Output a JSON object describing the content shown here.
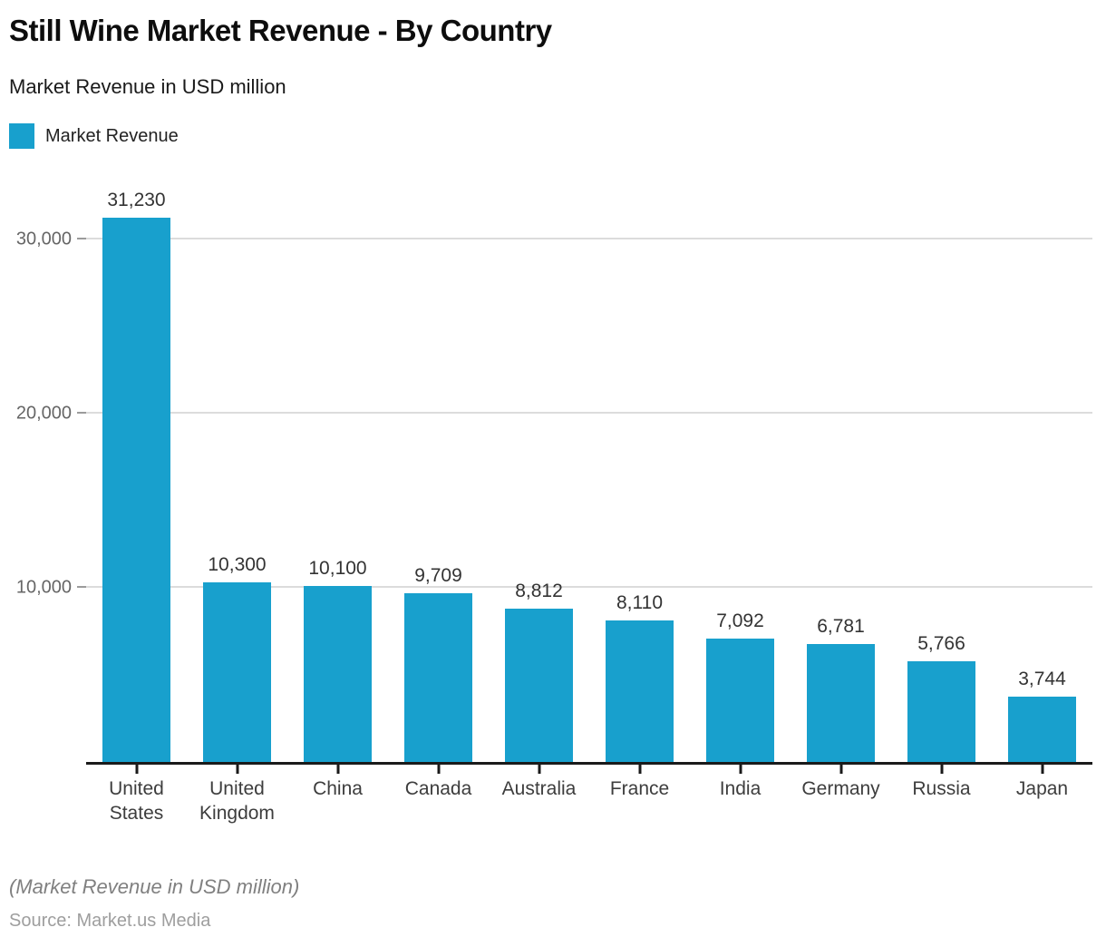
{
  "header": {
    "title": "Still Wine Market Revenue - By Country",
    "subtitle": "Market Revenue in USD million",
    "legend": {
      "label": "Market Revenue",
      "color": "#18A0CD"
    }
  },
  "chart_data": {
    "type": "bar",
    "title": "Still Wine Market Revenue - By Country",
    "series_name": "Market Revenue",
    "categories": [
      "United\nStates",
      "United\nKingdom",
      "China",
      "Canada",
      "Australia",
      "France",
      "India",
      "Germany",
      "Russia",
      "Japan"
    ],
    "values": [
      31230,
      10300,
      10100,
      9709,
      8812,
      8110,
      7092,
      6781,
      5766,
      3744
    ],
    "value_labels": [
      "31,230",
      "10,300",
      "10,100",
      "9,709",
      "8,812",
      "8,110",
      "7,092",
      "6,781",
      "5,766",
      "3,744"
    ],
    "xlabel": "",
    "ylabel": "Market Revenue in USD million",
    "ylim": [
      0,
      33850
    ],
    "yticks": [
      10000,
      20000,
      30000
    ],
    "ytick_labels": [
      "10,000",
      "20,000",
      "30,000"
    ],
    "grid": true,
    "legend_position": "top-left",
    "bar_color": "#18A0CD"
  },
  "footer": {
    "note": "(Market Revenue in USD million)",
    "source": "Source: Market.us Media"
  }
}
